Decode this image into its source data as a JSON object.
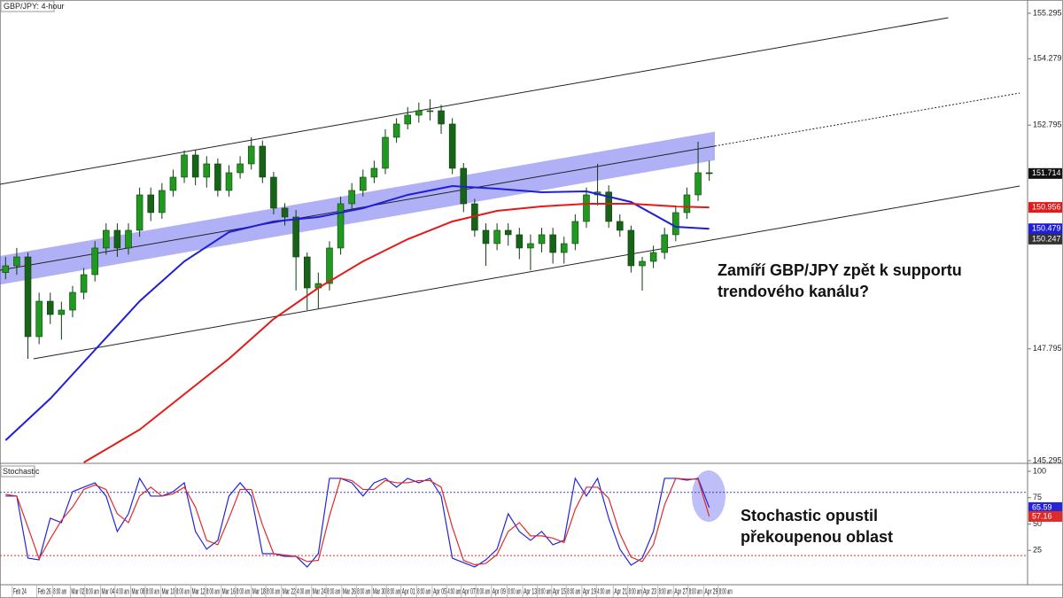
{
  "chart_data": [
    {
      "type": "candlestick",
      "title": "GBP/JPY: 4-hour",
      "open": [
        149.5,
        149.651,
        149.849,
        148.067,
        148.859,
        148.562,
        148.661,
        149.057,
        149.453,
        150.048,
        150.444,
        150.048,
        150.444,
        151.236,
        150.84,
        151.335,
        151.632,
        152.127,
        151.632,
        151.929,
        151.335,
        151.731,
        151.929,
        152.325,
        151.632,
        150.939,
        150.741,
        149.849,
        149.156,
        149.255,
        150.048,
        151.038,
        151.335,
        151.632,
        151.83,
        152.523,
        152.82,
        153.018,
        153.117,
        153.117,
        152.82,
        151.83,
        151.038,
        150.444,
        150.147,
        150.444,
        150.345,
        150.048,
        150.147,
        150.345,
        149.948,
        150.147,
        150.642,
        151.236,
        151.3,
        150.642,
        150.444,
        149.651,
        149.75,
        149.948,
        150.345,
        150.84,
        151.236,
        151.731
      ],
      "high": [
        149.85,
        150.05,
        149.95,
        149.05,
        149.05,
        148.85,
        149.2,
        149.6,
        150.2,
        150.6,
        150.6,
        150.6,
        151.4,
        151.4,
        151.5,
        151.8,
        152.23,
        152.25,
        152.1,
        152.05,
        151.9,
        152.1,
        152.523,
        152.45,
        151.75,
        151.05,
        150.9,
        149.95,
        149.5,
        150.2,
        151.2,
        151.5,
        151.8,
        152.0,
        152.7,
        152.95,
        153.2,
        153.3,
        153.374,
        153.25,
        152.95,
        151.95,
        151.15,
        150.6,
        150.6,
        150.6,
        150.5,
        150.35,
        150.5,
        150.5,
        150.3,
        150.8,
        151.4,
        151.929,
        151.45,
        150.8,
        150.55,
        149.85,
        150.1,
        150.5,
        151.0,
        151.4,
        152.424,
        152.0
      ],
      "low": [
        149.35,
        149.45,
        147.572,
        147.9,
        148.35,
        148.0,
        148.5,
        148.9,
        149.3,
        149.9,
        149.85,
        149.9,
        150.3,
        150.65,
        150.7,
        151.2,
        151.5,
        151.45,
        151.4,
        151.2,
        151.2,
        151.6,
        151.8,
        151.5,
        150.8,
        150.55,
        149.1,
        148.661,
        148.7,
        149.1,
        149.9,
        150.9,
        151.2,
        151.5,
        151.7,
        152.4,
        152.7,
        152.85,
        152.9,
        152.6,
        151.7,
        150.85,
        150.3,
        149.651,
        150.0,
        150.1,
        149.8,
        149.552,
        149.95,
        149.7,
        149.7,
        150.0,
        150.5,
        151.0,
        150.5,
        150.3,
        149.5,
        149.097,
        149.6,
        149.8,
        150.2,
        150.7,
        151.1,
        151.55
      ],
      "close": [
        149.651,
        149.849,
        148.067,
        148.859,
        148.562,
        148.661,
        149.057,
        149.453,
        150.048,
        150.444,
        150.048,
        150.444,
        151.236,
        150.84,
        151.335,
        151.632,
        152.127,
        151.632,
        151.929,
        151.335,
        151.731,
        151.929,
        152.325,
        151.632,
        150.939,
        150.741,
        149.849,
        149.156,
        149.255,
        150.048,
        151.038,
        151.335,
        151.632,
        151.83,
        152.523,
        152.82,
        153.018,
        153.117,
        153.117,
        152.82,
        151.83,
        151.038,
        150.444,
        150.147,
        150.444,
        150.345,
        150.048,
        150.147,
        150.345,
        149.948,
        150.147,
        150.642,
        151.236,
        151.3,
        150.642,
        150.444,
        149.651,
        149.75,
        149.948,
        150.345,
        150.84,
        151.236,
        151.731,
        151.714
      ],
      "up_color": "#1f9a1f",
      "down_color": "#176317",
      "last_price_color": "#111111",
      "xlim": [
        -0.5,
        91.5
      ],
      "ylim": [
        145.255,
        155.592
      ],
      "yticks": [
        155.295,
        154.279,
        152.795,
        147.795,
        145.295
      ],
      "moving_averages": [
        {
          "color": "#1f1fd6",
          "x": [
            0,
            4,
            8,
            12,
            16,
            20,
            24,
            28,
            32,
            36,
            40,
            44,
            48,
            52,
            56,
            60,
            63
          ],
          "values": [
            145.75,
            146.681,
            147.77,
            148.859,
            149.75,
            150.404,
            150.642,
            150.741,
            150.939,
            151.236,
            151.434,
            151.375,
            151.295,
            151.315,
            151.077,
            150.523,
            150.479
          ]
        },
        {
          "color": "#e31a1a",
          "x": [
            7,
            12,
            16,
            20,
            24,
            28,
            32,
            36,
            40,
            44,
            48,
            52,
            56,
            60,
            63
          ],
          "values": [
            145.255,
            145.988,
            146.78,
            147.572,
            148.463,
            149.156,
            149.75,
            150.245,
            150.642,
            150.879,
            150.978,
            151.038,
            151.038,
            150.978,
            150.956
          ]
        }
      ],
      "trend_lines": [
        {
          "color": "#222222",
          "style": "solid",
          "x": [
            -0.5,
            84.4
          ],
          "values": [
            151.473,
            155.196
          ]
        },
        {
          "color": "#222222",
          "style": "solid",
          "x": [
            -0.5,
            63.5
          ],
          "values": [
            149.552,
            152.328
          ]
        },
        {
          "color": "#222222",
          "style": "dotted",
          "x": [
            63.5,
            90.8
          ],
          "values": [
            152.328,
            153.513
          ]
        },
        {
          "color": "#222222",
          "style": "solid",
          "x": [
            2.5,
            90.8
          ],
          "values": [
            147.572,
            151.434
          ]
        }
      ],
      "zone": {
        "color": "#6f6ff0",
        "x": [
          -0.5,
          63.5
        ],
        "upper": [
          149.87,
          152.65
        ],
        "lower": [
          149.23,
          152.01
        ]
      },
      "price_markers": [
        {
          "value": 150.247,
          "color": "#333333"
        }
      ],
      "annotations": [
        "Zamíří GBP/JPY zpět k supportu",
        "trendového kanálu?"
      ]
    },
    {
      "type": "line",
      "title": "Stochastic",
      "series": [
        {
          "color": "#2424d8",
          "values": [
            76.5,
            76.5,
            17.6,
            16.0,
            55.5,
            51.3,
            80.7,
            84.9,
            89.1,
            76.5,
            42.9,
            59.7,
            93.3,
            76.5,
            76.5,
            80.7,
            89.1,
            42.9,
            26.1,
            34.5,
            76.5,
            89.1,
            76.5,
            21.8,
            21.8,
            19.3,
            19.3,
            9.2,
            21.8,
            93.3,
            93.3,
            89.1,
            76.5,
            89.1,
            93.3,
            84.9,
            93.3,
            89.1,
            93.3,
            76.5,
            17.6,
            13.4,
            9.2,
            16.0,
            26.1,
            59.7,
            42.9,
            34.5,
            42.9,
            30.3,
            34.5,
            93.3,
            76.5,
            93.3,
            55.5,
            26.1,
            10.9,
            17.6,
            42.9,
            93.3,
            93.3,
            91.6,
            93.3,
            65.59
          ]
        },
        {
          "color": "#e02a2a",
          "values": [
            78.0,
            76.5,
            47.1,
            16.8,
            35.8,
            53.4,
            66.0,
            82.8,
            87.0,
            82.8,
            59.7,
            51.3,
            76.5,
            84.9,
            76.5,
            78.6,
            84.9,
            66.0,
            34.5,
            30.3,
            55.5,
            82.8,
            82.8,
            49.2,
            21.8,
            20.6,
            19.3,
            14.3,
            15.5,
            57.6,
            93.3,
            91.2,
            82.8,
            82.8,
            91.2,
            89.1,
            89.1,
            91.2,
            91.2,
            84.9,
            47.1,
            15.5,
            11.3,
            12.6,
            21.1,
            42.9,
            51.3,
            38.7,
            38.7,
            36.6,
            32.4,
            63.9,
            84.9,
            84.9,
            74.4,
            40.8,
            18.5,
            14.3,
            30.3,
            68.1,
            93.3,
            92.5,
            92.5,
            57.16
          ]
        }
      ],
      "levels": [
        {
          "value": 80,
          "color": "#3f3fd0"
        },
        {
          "value": 20,
          "color": "#e03030"
        }
      ],
      "xlim": [
        -0.5,
        91.5
      ],
      "ylim": [
        -7.6,
        106.7
      ],
      "yticks": [
        25,
        50,
        75,
        100
      ],
      "xticks": [
        {
          "value": 0.6,
          "label": "Feb 24"
        },
        {
          "value": 2.8,
          "label": "Feb 26"
        },
        {
          "value": 4.2,
          "label": "8:00 am"
        },
        {
          "value": 5.8,
          "label": "Mar 02"
        },
        {
          "value": 7.1,
          "label": "8:00 am"
        },
        {
          "value": 8.5,
          "label": "Mar 04"
        },
        {
          "value": 9.8,
          "label": "4:00 am"
        },
        {
          "value": 11.2,
          "label": "Mar 08"
        },
        {
          "value": 12.5,
          "label": "8:00 am"
        },
        {
          "value": 13.9,
          "label": "Mar 10"
        },
        {
          "value": 15.2,
          "label": "8:00 am"
        },
        {
          "value": 16.6,
          "label": "Mar 12"
        },
        {
          "value": 17.9,
          "label": "8:00 am"
        },
        {
          "value": 19.3,
          "label": "Mar 16"
        },
        {
          "value": 20.6,
          "label": "8:00 am"
        },
        {
          "value": 22.0,
          "label": "Mar 18"
        },
        {
          "value": 23.3,
          "label": "8:00 am"
        },
        {
          "value": 24.7,
          "label": "Mar 22"
        },
        {
          "value": 26.0,
          "label": "4:00 am"
        },
        {
          "value": 27.4,
          "label": "Mar 24"
        },
        {
          "value": 28.7,
          "label": "8:00 am"
        },
        {
          "value": 30.1,
          "label": "Mar 26"
        },
        {
          "value": 31.4,
          "label": "8:00 am"
        },
        {
          "value": 32.8,
          "label": "Mar 30"
        },
        {
          "value": 34.1,
          "label": "8:00 am"
        },
        {
          "value": 35.4,
          "label": "Apr 01"
        },
        {
          "value": 36.8,
          "label": "8:00 am"
        },
        {
          "value": 38.2,
          "label": "Apr 05"
        },
        {
          "value": 39.5,
          "label": "4:00 am"
        },
        {
          "value": 40.8,
          "label": "Apr 07"
        },
        {
          "value": 42.1,
          "label": "8:00 am"
        },
        {
          "value": 43.5,
          "label": "Apr 09"
        },
        {
          "value": 44.9,
          "label": "8:00 am"
        },
        {
          "value": 46.3,
          "label": "Apr 13"
        },
        {
          "value": 47.6,
          "label": "8:00 am"
        },
        {
          "value": 48.9,
          "label": "Apr 15"
        },
        {
          "value": 50.2,
          "label": "8:00 am"
        },
        {
          "value": 51.6,
          "label": "Apr 19"
        },
        {
          "value": 52.9,
          "label": "4:00 am"
        },
        {
          "value": 54.4,
          "label": "Apr 21"
        },
        {
          "value": 55.7,
          "label": "8:00 am"
        },
        {
          "value": 57.0,
          "label": "Apr 23"
        },
        {
          "value": 58.4,
          "label": "8:00 am"
        },
        {
          "value": 59.8,
          "label": "Apr 27"
        },
        {
          "value": 61.1,
          "label": "8:00 am"
        },
        {
          "value": 62.5,
          "label": "Apr 29"
        },
        {
          "value": 63.8,
          "label": "8:00 am"
        }
      ],
      "annotations": [
        "Stochastic opustil",
        "překoupenou oblast"
      ]
    }
  ]
}
